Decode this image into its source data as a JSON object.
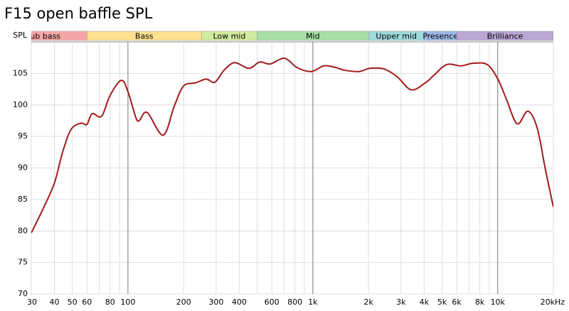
{
  "chart_data": {
    "type": "line",
    "title": "F15 open baffle SPL",
    "ylabel": "SPL",
    "xscale": "log",
    "grid": true,
    "xlim": [
      30,
      20000
    ],
    "ylim": [
      70,
      110
    ],
    "yticks": [
      70,
      75,
      80,
      85,
      90,
      95,
      100,
      105
    ],
    "xticks": [
      30,
      40,
      50,
      60,
      80,
      100,
      200,
      300,
      400,
      600,
      800,
      {
        "value": 1000,
        "label": "1k"
      },
      {
        "value": 2000,
        "label": "2k"
      },
      {
        "value": 3000,
        "label": "3k"
      },
      {
        "value": 4000,
        "label": "4k"
      },
      {
        "value": 5000,
        "label": "5k"
      },
      {
        "value": 6000,
        "label": "6k"
      },
      {
        "value": 8000,
        "label": "8k"
      },
      {
        "value": 10000,
        "label": "10k"
      },
      {
        "value": 20000,
        "label": "20kHz"
      }
    ],
    "xminorticks": [
      70,
      90,
      500,
      700,
      900,
      7000,
      9000
    ],
    "bands": [
      {
        "name": "Sub bass",
        "from": 20,
        "to": 60,
        "color": "#f4a6a6"
      },
      {
        "name": "Bass",
        "from": 60,
        "to": 250,
        "color": "#fde090"
      },
      {
        "name": "Low mid",
        "from": 250,
        "to": 500,
        "color": "#d2eb9e"
      },
      {
        "name": "Mid",
        "from": 500,
        "to": 2000,
        "color": "#a6e0a6"
      },
      {
        "name": "Upper mid",
        "from": 2000,
        "to": 4000,
        "color": "#9fdadb"
      },
      {
        "name": "Presence",
        "from": 4000,
        "to": 6000,
        "color": "#9db9e8"
      },
      {
        "name": "Brilliance",
        "from": 6000,
        "to": 20000,
        "color": "#bba6d4"
      }
    ],
    "series": [
      {
        "color": "#a31a1a",
        "x": [
          30,
          34.6,
          40,
          44.3,
          49.2,
          55.7,
          60,
          64,
          72,
          80,
          92,
          100,
          110,
          115,
          127,
          155,
          178,
          200,
          232,
          265,
          295,
          331,
          378,
          451,
          515,
          589,
          703,
          824,
          984,
          1143,
          1306,
          1493,
          1782,
          2032,
          2427,
          2851,
          3404,
          4060,
          4516,
          5297,
          6325,
          7352,
          8775,
          10020,
          11150,
          12740,
          14550,
          16330,
          18160,
          20000
        ],
        "values": [
          79.7,
          83.4,
          87.6,
          92.5,
          96.1,
          97.1,
          96.9,
          98.6,
          98.2,
          101.5,
          103.9,
          102.1,
          98.1,
          97.5,
          98.8,
          95.2,
          99.8,
          103.0,
          103.5,
          104.1,
          103.6,
          105.5,
          106.7,
          105.8,
          106.8,
          106.5,
          107.4,
          105.9,
          105.3,
          106.2,
          106.0,
          105.5,
          105.3,
          105.8,
          105.7,
          104.5,
          102.4,
          103.5,
          104.7,
          106.4,
          106.2,
          106.6,
          106.4,
          104.1,
          100.9,
          97.0,
          99.0,
          96.4,
          89.6,
          83.8
        ]
      }
    ]
  }
}
